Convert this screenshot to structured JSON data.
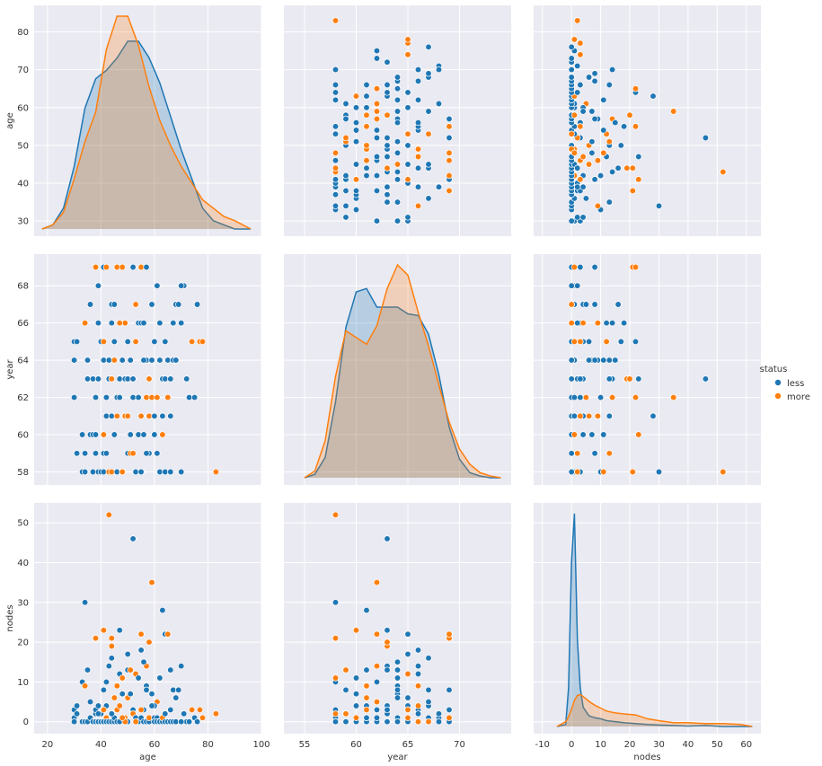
{
  "chart_data": {
    "type": "pairplot",
    "variables": [
      "age",
      "year",
      "nodes"
    ],
    "hue": "status",
    "legend": {
      "title": "status",
      "placement": "right",
      "entries": [
        "less",
        "more"
      ]
    },
    "colors": {
      "less": "#1f77b4",
      "more": "#ff7f0e",
      "background": "#eaeaf2",
      "grid": "#ffffff"
    },
    "grid": true,
    "ranges": {
      "age": {
        "lim": [
          15,
          100
        ],
        "ticks": [
          20,
          40,
          60,
          80,
          100
        ],
        "ylim": [
          26,
          87
        ],
        "yticks": [
          30,
          40,
          50,
          60,
          70,
          80
        ]
      },
      "year": {
        "lim": [
          53,
          75
        ],
        "ticks": [
          55,
          60,
          65,
          70
        ],
        "ylim": [
          57.3,
          69.7
        ],
        "yticks": [
          58,
          60,
          62,
          64,
          66,
          68
        ]
      },
      "nodes": {
        "lim": [
          -13,
          65
        ],
        "ticks": [
          -10,
          0,
          10,
          20,
          30,
          40,
          50,
          60
        ],
        "ylim": [
          -3,
          55
        ],
        "yticks": [
          0,
          10,
          20,
          30,
          40,
          50
        ]
      }
    },
    "kde": {
      "age": {
        "x": [
          18,
          22,
          26,
          30,
          34,
          38,
          42,
          46,
          50,
          54,
          58,
          62,
          66,
          70,
          74,
          78,
          82,
          86,
          90,
          96
        ],
        "less": [
          0,
          0.001,
          0.005,
          0.015,
          0.029,
          0.036,
          0.038,
          0.041,
          0.045,
          0.045,
          0.041,
          0.035,
          0.027,
          0.019,
          0.012,
          0.005,
          0.002,
          0.001,
          0,
          0
        ],
        "more": [
          0,
          0.001,
          0.004,
          0.012,
          0.021,
          0.028,
          0.043,
          0.051,
          0.051,
          0.044,
          0.034,
          0.026,
          0.02,
          0.015,
          0.011,
          0.007,
          0.005,
          0.003,
          0.002,
          0
        ]
      },
      "year": {
        "x": [
          55,
          56,
          57,
          58,
          59,
          60,
          61,
          62,
          63,
          64,
          65,
          66,
          67,
          68,
          69,
          70,
          71,
          72,
          73,
          74
        ],
        "less": [
          0,
          0.002,
          0.012,
          0.045,
          0.089,
          0.11,
          0.112,
          0.101,
          0.101,
          0.101,
          0.097,
          0.096,
          0.085,
          0.061,
          0.03,
          0.011,
          0.003,
          0.001,
          0,
          0
        ],
        "more": [
          0,
          0.004,
          0.022,
          0.06,
          0.087,
          0.083,
          0.079,
          0.09,
          0.112,
          0.126,
          0.12,
          0.098,
          0.078,
          0.055,
          0.033,
          0.017,
          0.008,
          0.003,
          0.001,
          0
        ]
      },
      "nodes": {
        "x": [
          -5,
          -2,
          -1,
          0,
          1,
          2,
          3,
          4,
          6,
          8,
          10,
          12,
          15,
          18,
          22,
          26,
          30,
          35,
          40,
          46,
          52,
          58,
          62
        ],
        "less": [
          0,
          0.002,
          0.04,
          0.17,
          0.22,
          0.09,
          0.04,
          0.02,
          0.011,
          0.009,
          0.008,
          0.006,
          0.005,
          0.004,
          0.003,
          0.002,
          0.0015,
          0.001,
          0.0005,
          0.001,
          0,
          0,
          0
        ],
        "more": [
          0,
          0.005,
          0.01,
          0.018,
          0.027,
          0.032,
          0.033,
          0.031,
          0.026,
          0.022,
          0.019,
          0.016,
          0.014,
          0.013,
          0.012,
          0.008,
          0.006,
          0.004,
          0.004,
          0.003,
          0.003,
          0.002,
          0
        ]
      }
    },
    "points": [
      [
        30,
        64,
        1,
        "less"
      ],
      [
        30,
        62,
        3,
        "less"
      ],
      [
        30,
        65,
        0,
        "less"
      ],
      [
        31,
        59,
        2,
        "less"
      ],
      [
        31,
        65,
        4,
        "less"
      ],
      [
        33,
        58,
        10,
        "less"
      ],
      [
        33,
        60,
        0,
        "less"
      ],
      [
        34,
        59,
        0,
        "less"
      ],
      [
        34,
        66,
        9,
        "more"
      ],
      [
        34,
        58,
        30,
        "less"
      ],
      [
        35,
        64,
        13,
        "less"
      ],
      [
        35,
        63,
        0,
        "less"
      ],
      [
        36,
        60,
        1,
        "less"
      ],
      [
        37,
        60,
        0,
        "less"
      ],
      [
        37,
        63,
        0,
        "less"
      ],
      [
        37,
        58,
        0,
        "less"
      ],
      [
        38,
        69,
        21,
        "more"
      ],
      [
        38,
        59,
        2,
        "less"
      ],
      [
        38,
        60,
        0,
        "less"
      ],
      [
        38,
        62,
        3,
        "less"
      ],
      [
        39,
        66,
        0,
        "less"
      ],
      [
        39,
        63,
        4,
        "less"
      ],
      [
        39,
        58,
        0,
        "less"
      ],
      [
        40,
        58,
        2,
        "less"
      ],
      [
        40,
        65,
        0,
        "less"
      ],
      [
        41,
        60,
        23,
        "more"
      ],
      [
        41,
        64,
        0,
        "less"
      ],
      [
        41,
        58,
        0,
        "less"
      ],
      [
        41,
        69,
        8,
        "less"
      ],
      [
        41,
        59,
        0,
        "less"
      ],
      [
        42,
        69,
        1,
        "more"
      ],
      [
        42,
        59,
        0,
        "less"
      ],
      [
        42,
        61,
        4,
        "less"
      ],
      [
        43,
        58,
        52,
        "more"
      ],
      [
        43,
        64,
        0,
        "less"
      ],
      [
        43,
        63,
        14,
        "less"
      ],
      [
        44,
        61,
        0,
        "less"
      ],
      [
        44,
        63,
        19,
        "more"
      ],
      [
        44,
        67,
        16,
        "less"
      ],
      [
        44,
        58,
        21,
        "more"
      ],
      [
        45,
        65,
        6,
        "less"
      ],
      [
        45,
        60,
        0,
        "less"
      ],
      [
        45,
        67,
        1,
        "less"
      ],
      [
        46,
        62,
        0,
        "less"
      ],
      [
        46,
        58,
        3,
        "less"
      ],
      [
        46,
        69,
        3,
        "more"
      ],
      [
        47,
        63,
        23,
        "less"
      ],
      [
        47,
        62,
        0,
        "less"
      ],
      [
        47,
        66,
        12,
        "less"
      ],
      [
        48,
        58,
        11,
        "less"
      ],
      [
        48,
        58,
        11,
        "more"
      ],
      [
        48,
        64,
        7,
        "less"
      ],
      [
        49,
        63,
        0,
        "less"
      ],
      [
        49,
        61,
        1,
        "more"
      ],
      [
        50,
        63,
        13,
        "less"
      ],
      [
        50,
        59,
        0,
        "less"
      ],
      [
        50,
        61,
        6,
        "more"
      ],
      [
        51,
        59,
        13,
        "more"
      ],
      [
        51,
        64,
        7,
        "less"
      ],
      [
        52,
        69,
        3,
        "less"
      ],
      [
        52,
        62,
        3,
        "less"
      ],
      [
        52,
        59,
        2,
        "more"
      ],
      [
        53,
        58,
        1,
        "less"
      ],
      [
        53,
        65,
        12,
        "more"
      ],
      [
        54,
        60,
        11,
        "less"
      ],
      [
        54,
        66,
        0,
        "less"
      ],
      [
        54,
        62,
        0,
        "less"
      ],
      [
        55,
        58,
        1,
        "less"
      ],
      [
        55,
        69,
        22,
        "more"
      ],
      [
        55,
        66,
        18,
        "less"
      ],
      [
        56,
        60,
        0,
        "less"
      ],
      [
        56,
        66,
        3,
        "less"
      ],
      [
        57,
        64,
        9,
        "less"
      ],
      [
        57,
        69,
        0,
        "less"
      ],
      [
        57,
        62,
        14,
        "more"
      ],
      [
        58,
        59,
        0,
        "less"
      ],
      [
        58,
        61,
        1,
        "more"
      ],
      [
        59,
        62,
        35,
        "more"
      ],
      [
        59,
        64,
        7,
        "less"
      ],
      [
        60,
        61,
        1,
        "less"
      ],
      [
        60,
        65,
        0,
        "less"
      ],
      [
        61,
        68,
        1,
        "less"
      ],
      [
        61,
        59,
        0,
        "less"
      ],
      [
        61,
        62,
        5,
        "more"
      ],
      [
        62,
        58,
        0,
        "less"
      ],
      [
        62,
        66,
        0,
        "less"
      ],
      [
        63,
        63,
        0,
        "less"
      ],
      [
        63,
        61,
        28,
        "less"
      ],
      [
        63,
        60,
        1,
        "more"
      ],
      [
        64,
        65,
        22,
        "less"
      ],
      [
        64,
        58,
        0,
        "less"
      ],
      [
        65,
        64,
        0,
        "less"
      ],
      [
        65,
        62,
        22,
        "more"
      ],
      [
        66,
        58,
        0,
        "less"
      ],
      [
        66,
        61,
        13,
        "less"
      ],
      [
        67,
        64,
        8,
        "less"
      ],
      [
        67,
        66,
        0,
        "less"
      ],
      [
        68,
        67,
        0,
        "less"
      ],
      [
        69,
        67,
        8,
        "less"
      ],
      [
        70,
        58,
        0,
        "less"
      ],
      [
        70,
        66,
        14,
        "less"
      ],
      [
        71,
        68,
        2,
        "less"
      ],
      [
        72,
        63,
        0,
        "less"
      ],
      [
        73,
        62,
        0,
        "less"
      ],
      [
        74,
        65,
        3,
        "more"
      ],
      [
        75,
        62,
        1,
        "less"
      ],
      [
        76,
        67,
        0,
        "less"
      ],
      [
        77,
        65,
        3,
        "more"
      ],
      [
        78,
        65,
        1,
        "more"
      ],
      [
        83,
        58,
        2,
        "more"
      ],
      [
        52,
        63,
        46,
        "less"
      ],
      [
        41,
        65,
        3,
        "more"
      ],
      [
        45,
        64,
        6,
        "more"
      ],
      [
        49,
        66,
        0,
        "more"
      ],
      [
        53,
        67,
        0,
        "more"
      ],
      [
        57,
        59,
        8,
        "less"
      ],
      [
        60,
        60,
        4,
        "less"
      ],
      [
        64,
        63,
        2,
        "less"
      ],
      [
        68,
        64,
        6,
        "less"
      ],
      [
        39,
        68,
        2,
        "less"
      ],
      [
        42,
        62,
        10,
        "less"
      ],
      [
        47,
        66,
        4,
        "more"
      ],
      [
        51,
        60,
        7,
        "less"
      ],
      [
        55,
        61,
        3,
        "more"
      ],
      [
        59,
        67,
        4,
        "less"
      ],
      [
        62,
        64,
        11,
        "less"
      ],
      [
        66,
        63,
        3,
        "less"
      ],
      [
        70,
        68,
        0,
        "less"
      ],
      [
        48,
        69,
        1,
        "more"
      ],
      [
        36,
        67,
        5,
        "less"
      ],
      [
        44,
        66,
        2,
        "less"
      ],
      [
        46,
        61,
        9,
        "more"
      ],
      [
        50,
        65,
        17,
        "less"
      ],
      [
        56,
        64,
        15,
        "less"
      ],
      [
        58,
        63,
        20,
        "more"
      ]
    ]
  }
}
